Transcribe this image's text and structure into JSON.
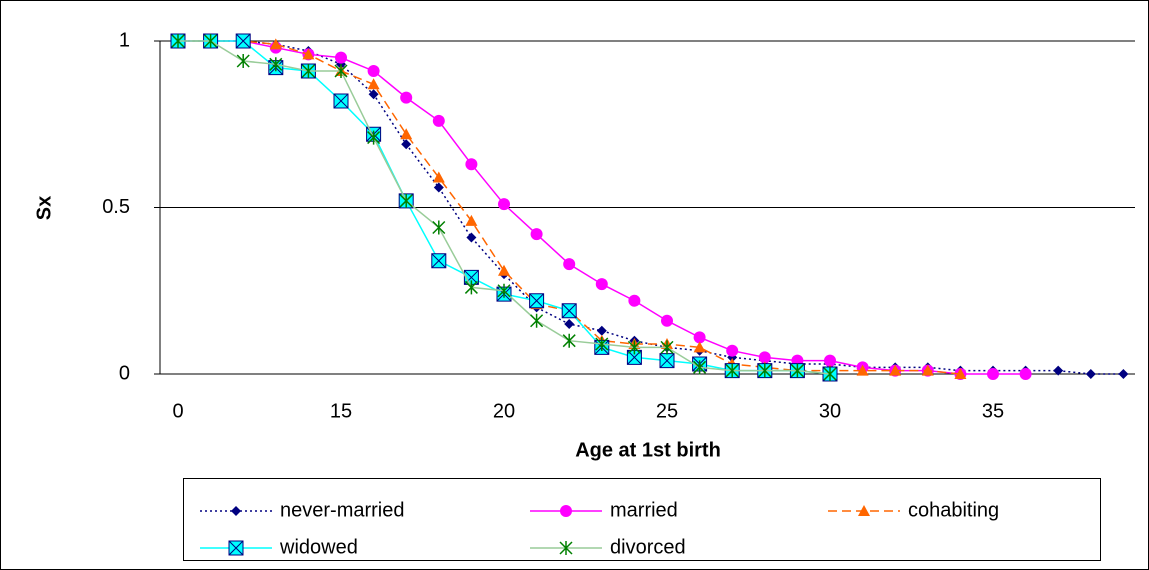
{
  "chart_data": {
    "type": "line",
    "xlabel": "Age at 1st birth",
    "ylabel": "Sx",
    "categories": [
      "0",
      null,
      null,
      null,
      null,
      "15",
      null,
      null,
      null,
      null,
      "20",
      null,
      null,
      null,
      null,
      "25",
      null,
      null,
      null,
      null,
      "30",
      null,
      null,
      null,
      null,
      "35",
      null,
      null,
      null,
      null
    ],
    "ylim": [
      0,
      1
    ],
    "yticks": [
      0,
      0.5,
      1
    ],
    "grid": true,
    "series": [
      {
        "name": "never-married",
        "color": "#000080",
        "marker_color": "#000080",
        "marker": "diamond",
        "dash": "dotted",
        "values": [
          1,
          1,
          1,
          0.99,
          0.97,
          0.93,
          0.84,
          0.69,
          0.56,
          0.41,
          0.3,
          0.2,
          0.15,
          0.13,
          0.1,
          0.08,
          0.07,
          0.05,
          0.04,
          0.03,
          0.03,
          0.02,
          0.02,
          0.02,
          0.01,
          0.01,
          0.01,
          0.01,
          0,
          0
        ]
      },
      {
        "name": "married",
        "color": "#ff00ff",
        "marker_color": "#ff00ff",
        "marker": "circle",
        "dash": "solid",
        "values": [
          1,
          1,
          1,
          0.98,
          0.96,
          0.95,
          0.91,
          0.83,
          0.76,
          0.63,
          0.51,
          0.42,
          0.33,
          0.27,
          0.22,
          0.16,
          0.11,
          0.07,
          0.05,
          0.04,
          0.04,
          0.02,
          0.01,
          0.01,
          0,
          0,
          0,
          null,
          null,
          null
        ]
      },
      {
        "name": "cohabiting",
        "color": "#ff6600",
        "marker_color": "#ff6600",
        "marker": "triangle",
        "dash": "dashed",
        "values": [
          1,
          1,
          1,
          0.99,
          0.96,
          0.91,
          0.87,
          0.72,
          0.59,
          0.46,
          0.31,
          0.21,
          0.19,
          0.1,
          0.09,
          0.09,
          0.08,
          0.03,
          0.02,
          0.01,
          0.01,
          0.01,
          0.01,
          0.01,
          0,
          null,
          null,
          null,
          null,
          null
        ]
      },
      {
        "name": "widowed",
        "color": "#00ffff",
        "marker_color": "#000080",
        "marker": "xsquare",
        "dash": "solid",
        "values": [
          1,
          1,
          1,
          0.92,
          0.91,
          0.82,
          0.72,
          0.52,
          0.34,
          0.29,
          0.24,
          0.22,
          0.19,
          0.08,
          0.05,
          0.04,
          0.03,
          0.01,
          0.01,
          0.01,
          0,
          null,
          null,
          null,
          null,
          null,
          null,
          null,
          null,
          null
        ]
      },
      {
        "name": "divorced",
        "color": "#99cc99",
        "marker_color": "#008000",
        "marker": "star",
        "dash": "solid",
        "values": [
          1,
          1,
          0.94,
          0.93,
          0.91,
          0.91,
          0.71,
          0.52,
          0.44,
          0.26,
          0.25,
          0.16,
          0.1,
          0.09,
          0.08,
          0.08,
          0.02,
          0.01,
          0.01,
          0.01,
          0,
          null,
          null,
          null,
          null,
          null,
          null,
          null,
          null,
          null
        ]
      }
    ]
  }
}
